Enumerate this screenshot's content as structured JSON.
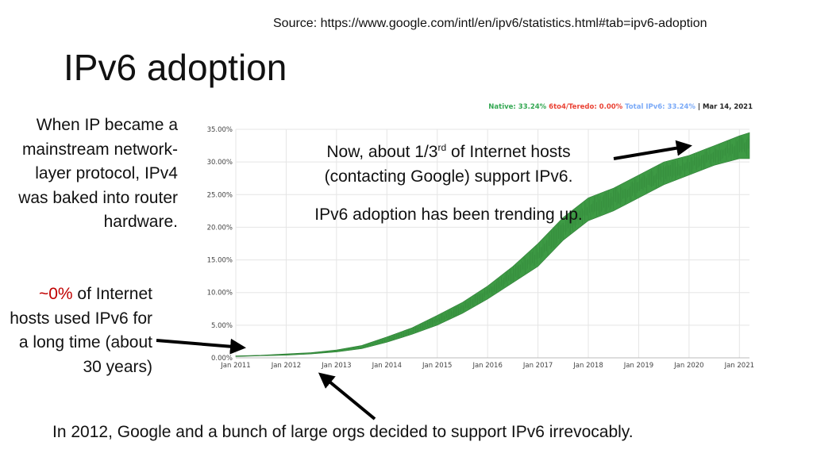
{
  "source": "Source: https://www.google.com/intl/en/ipv6/statistics.html#tab=ipv6-adoption",
  "title": "IPv6 adoption",
  "left_text": "When IP became a mainstream network-layer protocol, IPv4 was baked into router hardware.",
  "zero_text": {
    "highlight": "~0%",
    "rest": " of Internet hosts used IPv6 for a long time (about 30 years)"
  },
  "now_text": {
    "part1": "Now, about 1/3",
    "sup": "rd",
    "part2": " of Internet hosts (contacting Google) support IPv6."
  },
  "trend_text": "IPv6 adoption has been trending up.",
  "bottom_text": "In 2012, Google and a bunch of large orgs decided to support IPv6 irrevocably.",
  "legend": {
    "native": "Native: 33.24%",
    "teredo": "6to4/Teredo: 0.00%",
    "total": "Total IPv6: 33.24%",
    "date": "| Mar 14, 2021",
    "colors": {
      "native": "#34a853",
      "teredo": "#ea4335",
      "total": "#7baaf7",
      "date": "#222222"
    }
  },
  "colors": {
    "band": "#3d9a44",
    "band_edge": "#2e7d36",
    "grid": "#e5e5e5",
    "highlight": "#c00000"
  },
  "chart_data": {
    "type": "area",
    "title": "",
    "xlabel": "",
    "ylabel": "",
    "x_ticks": [
      "Jan 2011",
      "Jan 2012",
      "Jan 2013",
      "Jan 2014",
      "Jan 2015",
      "Jan 2016",
      "Jan 2017",
      "Jan 2018",
      "Jan 2019",
      "Jan 2020",
      "Jan 2021"
    ],
    "y_ticks": [
      "0.00%",
      "5.00%",
      "10.00%",
      "15.00%",
      "20.00%",
      "25.00%",
      "30.00%",
      "35.00%"
    ],
    "ylim": [
      0,
      35
    ],
    "xlim": [
      2011.0,
      2021.2
    ],
    "grid": true,
    "series": [
      {
        "name": "Native",
        "x": [
          2011.0,
          2011.5,
          2012.0,
          2012.5,
          2013.0,
          2013.5,
          2014.0,
          2014.5,
          2015.0,
          2015.5,
          2016.0,
          2016.5,
          2017.0,
          2017.5,
          2018.0,
          2018.5,
          2019.0,
          2019.5,
          2020.0,
          2020.5,
          2021.0,
          2021.2
        ],
        "low": [
          0.2,
          0.3,
          0.4,
          0.6,
          0.9,
          1.4,
          2.4,
          3.6,
          5.0,
          6.8,
          9.0,
          11.5,
          14.0,
          18.0,
          21.0,
          22.5,
          24.5,
          26.5,
          28.0,
          29.5,
          30.5,
          30.5
        ],
        "high": [
          0.3,
          0.4,
          0.6,
          0.8,
          1.2,
          1.9,
          3.2,
          4.6,
          6.5,
          8.5,
          11.0,
          14.0,
          17.5,
          21.5,
          24.5,
          26.0,
          28.0,
          30.0,
          31.0,
          32.5,
          34.0,
          34.5
        ]
      },
      {
        "name": "6to4/Teredo",
        "x": [
          2011.0,
          2021.2
        ],
        "values": [
          0.0,
          0.0
        ]
      }
    ]
  }
}
